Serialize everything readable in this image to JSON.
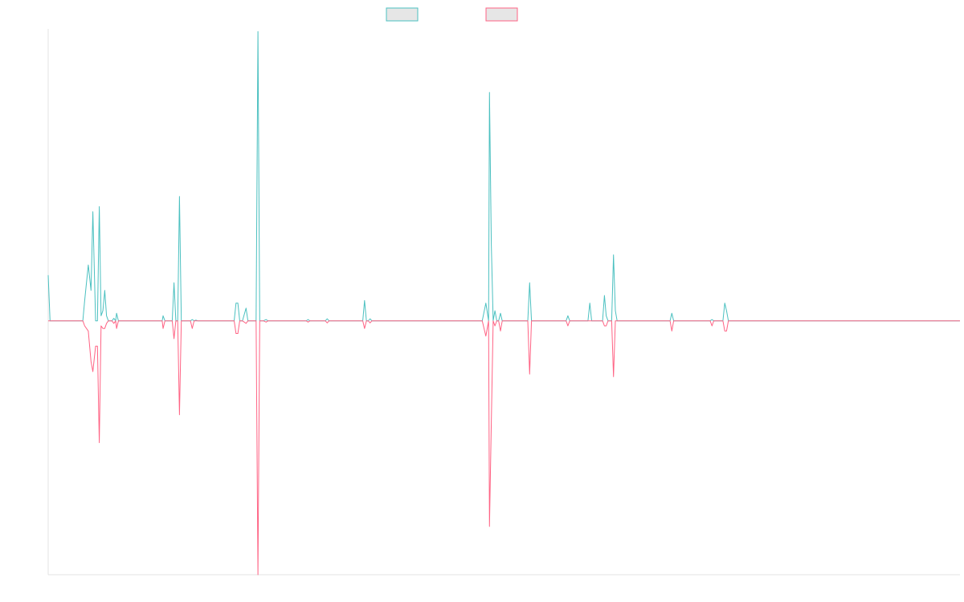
{
  "chart_data": {
    "type": "line",
    "title": "",
    "xlabel": "",
    "ylabel": "",
    "grid": false,
    "legend": {
      "position": "top-center",
      "entries": [
        {
          "label": "",
          "color": "#4bc0c0"
        },
        {
          "label": "",
          "color": "#ff6384"
        }
      ]
    },
    "ylim": [
      -100,
      115
    ],
    "colors": {
      "series_a": "#4bc0c0",
      "series_b": "#ff6384",
      "axis": "#e3e3e3"
    },
    "series": [
      {
        "color": "#4bc0c0",
        "points": [
          [
            0.0,
            18
          ],
          [
            0.002,
            0
          ],
          [
            0.038,
            0
          ],
          [
            0.04,
            8
          ],
          [
            0.044,
            22
          ],
          [
            0.047,
            12
          ],
          [
            0.049,
            43
          ],
          [
            0.052,
            0
          ],
          [
            0.054,
            0
          ],
          [
            0.056,
            45
          ],
          [
            0.058,
            2
          ],
          [
            0.06,
            4
          ],
          [
            0.062,
            12
          ],
          [
            0.064,
            2
          ],
          [
            0.066,
            0
          ],
          [
            0.07,
            0
          ],
          [
            0.072,
            1
          ],
          [
            0.074,
            0
          ],
          [
            0.075,
            3
          ],
          [
            0.077,
            0
          ],
          [
            0.125,
            0
          ],
          [
            0.126,
            2
          ],
          [
            0.128,
            0
          ],
          [
            0.136,
            0
          ],
          [
            0.138,
            15
          ],
          [
            0.14,
            0
          ],
          [
            0.142,
            0
          ],
          [
            0.144,
            49
          ],
          [
            0.146,
            0
          ],
          [
            0.148,
            0
          ],
          [
            0.156,
            0
          ],
          [
            0.158,
            0.5
          ],
          [
            0.16,
            0
          ],
          [
            0.162,
            0.3
          ],
          [
            0.164,
            0
          ],
          [
            0.204,
            0
          ],
          [
            0.206,
            7
          ],
          [
            0.208,
            7
          ],
          [
            0.21,
            0
          ],
          [
            0.213,
            0
          ],
          [
            0.217,
            5
          ],
          [
            0.219,
            0
          ],
          [
            0.228,
            0
          ],
          [
            0.23,
            114
          ],
          [
            0.232,
            0
          ],
          [
            0.236,
            0
          ],
          [
            0.239,
            0.5
          ],
          [
            0.241,
            0
          ],
          [
            0.283,
            0
          ],
          [
            0.285,
            0.5
          ],
          [
            0.287,
            0
          ],
          [
            0.304,
            0
          ],
          [
            0.306,
            0.8
          ],
          [
            0.308,
            0
          ],
          [
            0.345,
            0
          ],
          [
            0.347,
            8
          ],
          [
            0.349,
            0
          ],
          [
            0.351,
            0
          ],
          [
            0.353,
            0.8
          ],
          [
            0.355,
            0
          ],
          [
            0.476,
            0
          ],
          [
            0.48,
            7
          ],
          [
            0.483,
            0
          ],
          [
            0.484,
            90
          ],
          [
            0.486,
            30
          ],
          [
            0.488,
            0
          ],
          [
            0.49,
            4
          ],
          [
            0.492,
            0
          ],
          [
            0.494,
            0
          ],
          [
            0.496,
            3
          ],
          [
            0.498,
            0
          ],
          [
            0.526,
            0
          ],
          [
            0.528,
            15
          ],
          [
            0.53,
            0
          ],
          [
            0.568,
            0
          ],
          [
            0.57,
            2
          ],
          [
            0.572,
            0
          ],
          [
            0.592,
            0
          ],
          [
            0.594,
            7
          ],
          [
            0.596,
            0
          ],
          [
            0.608,
            0
          ],
          [
            0.61,
            10
          ],
          [
            0.612,
            2
          ],
          [
            0.614,
            0
          ],
          [
            0.618,
            0
          ],
          [
            0.62,
            26
          ],
          [
            0.622,
            4
          ],
          [
            0.624,
            0
          ],
          [
            0.682,
            0
          ],
          [
            0.684,
            3
          ],
          [
            0.686,
            0
          ],
          [
            0.726,
            0
          ],
          [
            0.728,
            0.5
          ],
          [
            0.73,
            0
          ],
          [
            0.74,
            0
          ],
          [
            0.742,
            7
          ],
          [
            0.744,
            4
          ],
          [
            0.746,
            0
          ],
          [
            1.0,
            0
          ]
        ]
      },
      {
        "color": "#ff6384",
        "points": [
          [
            0.0,
            0
          ],
          [
            0.038,
            0
          ],
          [
            0.04,
            -2
          ],
          [
            0.044,
            -4
          ],
          [
            0.047,
            -16
          ],
          [
            0.049,
            -20
          ],
          [
            0.052,
            -10
          ],
          [
            0.054,
            -10
          ],
          [
            0.056,
            -48
          ],
          [
            0.058,
            -2
          ],
          [
            0.06,
            -3
          ],
          [
            0.062,
            -3
          ],
          [
            0.064,
            -1
          ],
          [
            0.066,
            0
          ],
          [
            0.07,
            0
          ],
          [
            0.072,
            -1
          ],
          [
            0.074,
            0
          ],
          [
            0.075,
            -3
          ],
          [
            0.077,
            0
          ],
          [
            0.125,
            0
          ],
          [
            0.126,
            -3
          ],
          [
            0.128,
            0
          ],
          [
            0.136,
            0
          ],
          [
            0.138,
            -7
          ],
          [
            0.14,
            0
          ],
          [
            0.142,
            0
          ],
          [
            0.144,
            -37
          ],
          [
            0.146,
            0
          ],
          [
            0.148,
            0
          ],
          [
            0.156,
            0
          ],
          [
            0.158,
            -3
          ],
          [
            0.16,
            0
          ],
          [
            0.162,
            0
          ],
          [
            0.164,
            0
          ],
          [
            0.204,
            0
          ],
          [
            0.206,
            -5
          ],
          [
            0.208,
            -5
          ],
          [
            0.21,
            0
          ],
          [
            0.213,
            0
          ],
          [
            0.217,
            -1
          ],
          [
            0.219,
            0
          ],
          [
            0.228,
            0
          ],
          [
            0.23,
            -100
          ],
          [
            0.232,
            0
          ],
          [
            0.236,
            0
          ],
          [
            0.239,
            -0.5
          ],
          [
            0.241,
            0
          ],
          [
            0.283,
            0
          ],
          [
            0.285,
            -0.5
          ],
          [
            0.287,
            0
          ],
          [
            0.304,
            0
          ],
          [
            0.306,
            -0.8
          ],
          [
            0.308,
            0
          ],
          [
            0.345,
            0
          ],
          [
            0.347,
            -3
          ],
          [
            0.349,
            0
          ],
          [
            0.351,
            0
          ],
          [
            0.353,
            -0.8
          ],
          [
            0.355,
            0
          ],
          [
            0.476,
            0
          ],
          [
            0.48,
            -6
          ],
          [
            0.483,
            0
          ],
          [
            0.484,
            -81
          ],
          [
            0.486,
            -40
          ],
          [
            0.488,
            0
          ],
          [
            0.49,
            -2
          ],
          [
            0.492,
            0
          ],
          [
            0.494,
            0
          ],
          [
            0.496,
            -4
          ],
          [
            0.498,
            0
          ],
          [
            0.526,
            0
          ],
          [
            0.528,
            -21
          ],
          [
            0.53,
            0
          ],
          [
            0.568,
            0
          ],
          [
            0.57,
            -2
          ],
          [
            0.572,
            0
          ],
          [
            0.592,
            0
          ],
          [
            0.594,
            0
          ],
          [
            0.596,
            0
          ],
          [
            0.608,
            0
          ],
          [
            0.61,
            -2
          ],
          [
            0.612,
            -2
          ],
          [
            0.614,
            0
          ],
          [
            0.618,
            0
          ],
          [
            0.62,
            -22
          ],
          [
            0.622,
            0
          ],
          [
            0.624,
            0
          ],
          [
            0.682,
            0
          ],
          [
            0.684,
            -4
          ],
          [
            0.686,
            0
          ],
          [
            0.726,
            0
          ],
          [
            0.728,
            -2
          ],
          [
            0.73,
            0
          ],
          [
            0.74,
            0
          ],
          [
            0.742,
            -4
          ],
          [
            0.744,
            -4
          ],
          [
            0.746,
            0
          ],
          [
            1.0,
            0
          ]
        ]
      }
    ]
  }
}
